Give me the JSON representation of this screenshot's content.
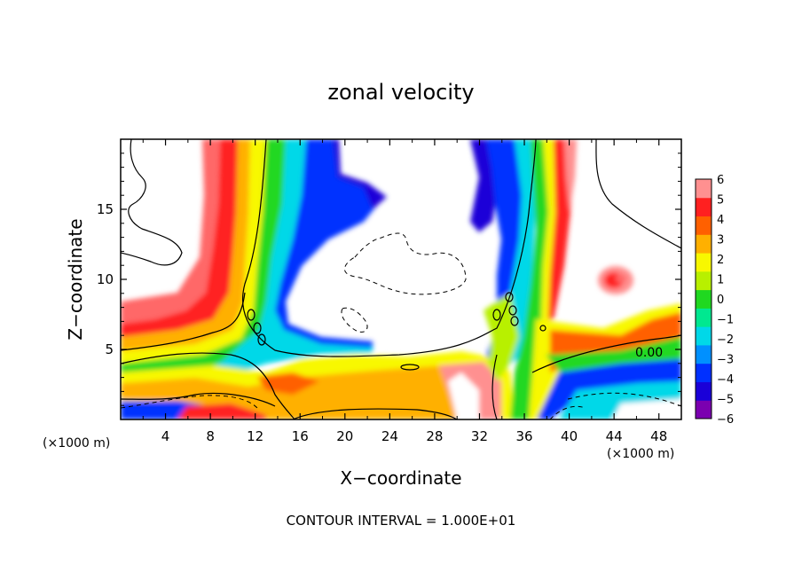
{
  "chart_data": {
    "type": "heatmap",
    "title": "zonal velocity",
    "xlabel": "X−coordinate",
    "ylabel": "Z−coordinate",
    "x_units": "(×1000 m)",
    "x_units_right": "(×1000 m)",
    "footer": "CONTOUR INTERVAL = 1.000E+01",
    "xlim": [
      0,
      50
    ],
    "ylim": [
      0,
      20
    ],
    "xticks": [
      "4",
      "8",
      "12",
      "16",
      "20",
      "24",
      "28",
      "32",
      "36",
      "40",
      "44",
      "48"
    ],
    "xtick_values": [
      4,
      8,
      12,
      16,
      20,
      24,
      28,
      32,
      36,
      40,
      44,
      48
    ],
    "yticks": [
      "5",
      "10",
      "15"
    ],
    "ytick_values": [
      5,
      10,
      15
    ],
    "colorbar": {
      "min": -6,
      "max": 6,
      "labels": [
        "6",
        "5",
        "4",
        "3",
        "2",
        "1",
        "0",
        "−1",
        "−2",
        "−3",
        "−4",
        "−5",
        "−6"
      ],
      "colors": [
        "#7b00b0",
        "#1a00d8",
        "#0030ff",
        "#0090ff",
        "#00d8e8",
        "#00e890",
        "#20d820",
        "#b8f000",
        "#f8f800",
        "#ffb000",
        "#ff6000",
        "#ff2020",
        "#ff9090"
      ]
    },
    "contour_label": "0.00"
  }
}
